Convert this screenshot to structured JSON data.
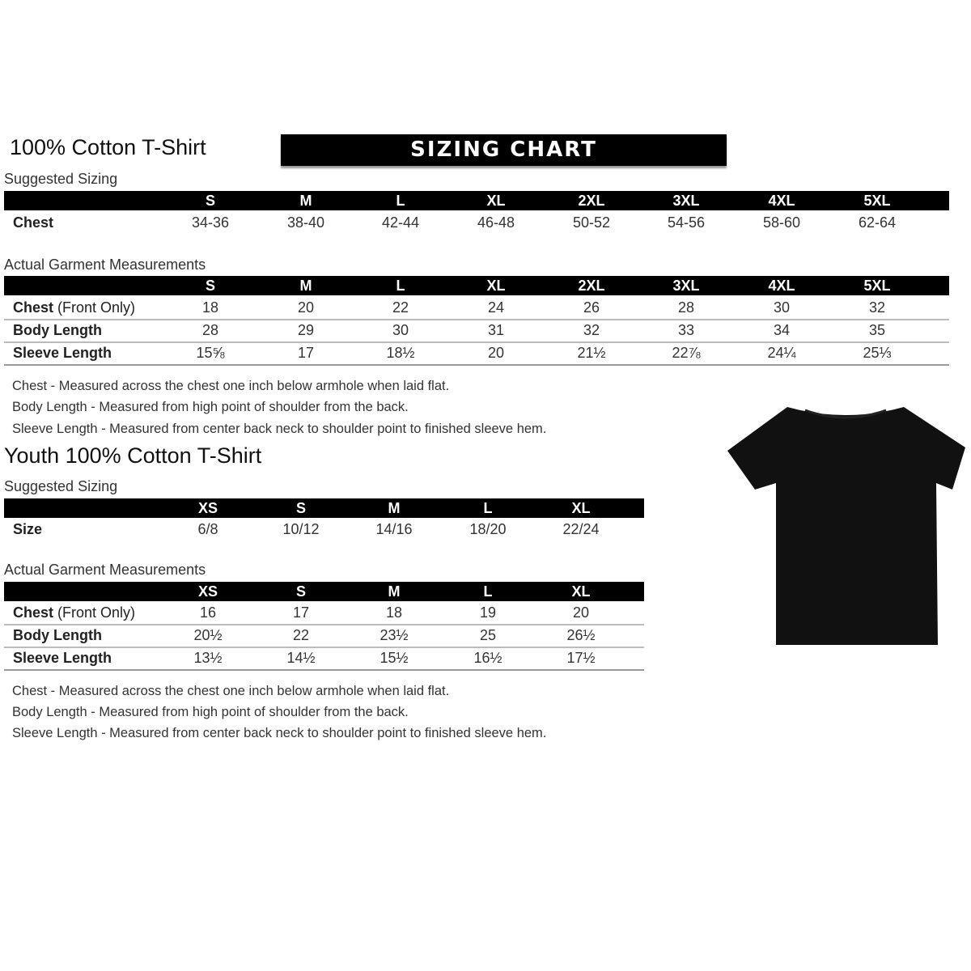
{
  "banner": "SIZING CHART",
  "adult": {
    "title": "100% Cotton T-Shirt",
    "suggested_label": "Suggested Sizing",
    "sizes": [
      "S",
      "M",
      "L",
      "XL",
      "2XL",
      "3XL",
      "4XL",
      "5XL"
    ],
    "suggested_rows": [
      {
        "label": "Chest",
        "values": [
          "34-36",
          "38-40",
          "42-44",
          "46-48",
          "50-52",
          "54-56",
          "58-60",
          "62-64"
        ]
      }
    ],
    "actual_label": "Actual Garment Measurements",
    "actual_rows": [
      {
        "label": "Chest",
        "label_note": " (Front Only)",
        "values": [
          "18",
          "20",
          "22",
          "24",
          "26",
          "28",
          "30",
          "32"
        ]
      },
      {
        "label": "Body Length",
        "values": [
          "28",
          "29",
          "30",
          "31",
          "32",
          "33",
          "34",
          "35"
        ]
      },
      {
        "label": "Sleeve Length",
        "values": [
          "15⅝",
          "17",
          "18½",
          "20",
          "21½",
          "22⅞",
          "24¼",
          "25⅓"
        ]
      }
    ],
    "notes": [
      "Chest - Measured across the chest one inch below armhole when laid flat.",
      "Body Length - Measured from high point of shoulder from the back.",
      "Sleeve Length - Measured from center back neck to shoulder point to finished sleeve hem."
    ]
  },
  "youth": {
    "title": "Youth 100% Cotton T-Shirt",
    "suggested_label": "Suggested Sizing",
    "sizes": [
      "XS",
      "S",
      "M",
      "L",
      "XL"
    ],
    "suggested_rows": [
      {
        "label": "Size",
        "values": [
          "6/8",
          "10/12",
          "14/16",
          "18/20",
          "22/24"
        ]
      }
    ],
    "actual_label": "Actual Garment Measurements",
    "actual_rows": [
      {
        "label": "Chest",
        "label_note": " (Front Only)",
        "values": [
          "16",
          "17",
          "18",
          "19",
          "20"
        ]
      },
      {
        "label": "Body Length",
        "values": [
          "20½",
          "22",
          "23½",
          "25",
          "26½"
        ]
      },
      {
        "label": "Sleeve Length",
        "values": [
          "13½",
          "14½",
          "15½",
          "16½",
          "17½"
        ]
      }
    ],
    "notes": [
      "Chest - Measured across the chest one inch below armhole when laid flat.",
      "Body Length - Measured from high point of shoulder from the back.",
      "Sleeve Length - Measured from center back neck to shoulder point to finished sleeve hem."
    ]
  },
  "image": {
    "icon": "t-shirt-icon",
    "color": "#111111"
  }
}
